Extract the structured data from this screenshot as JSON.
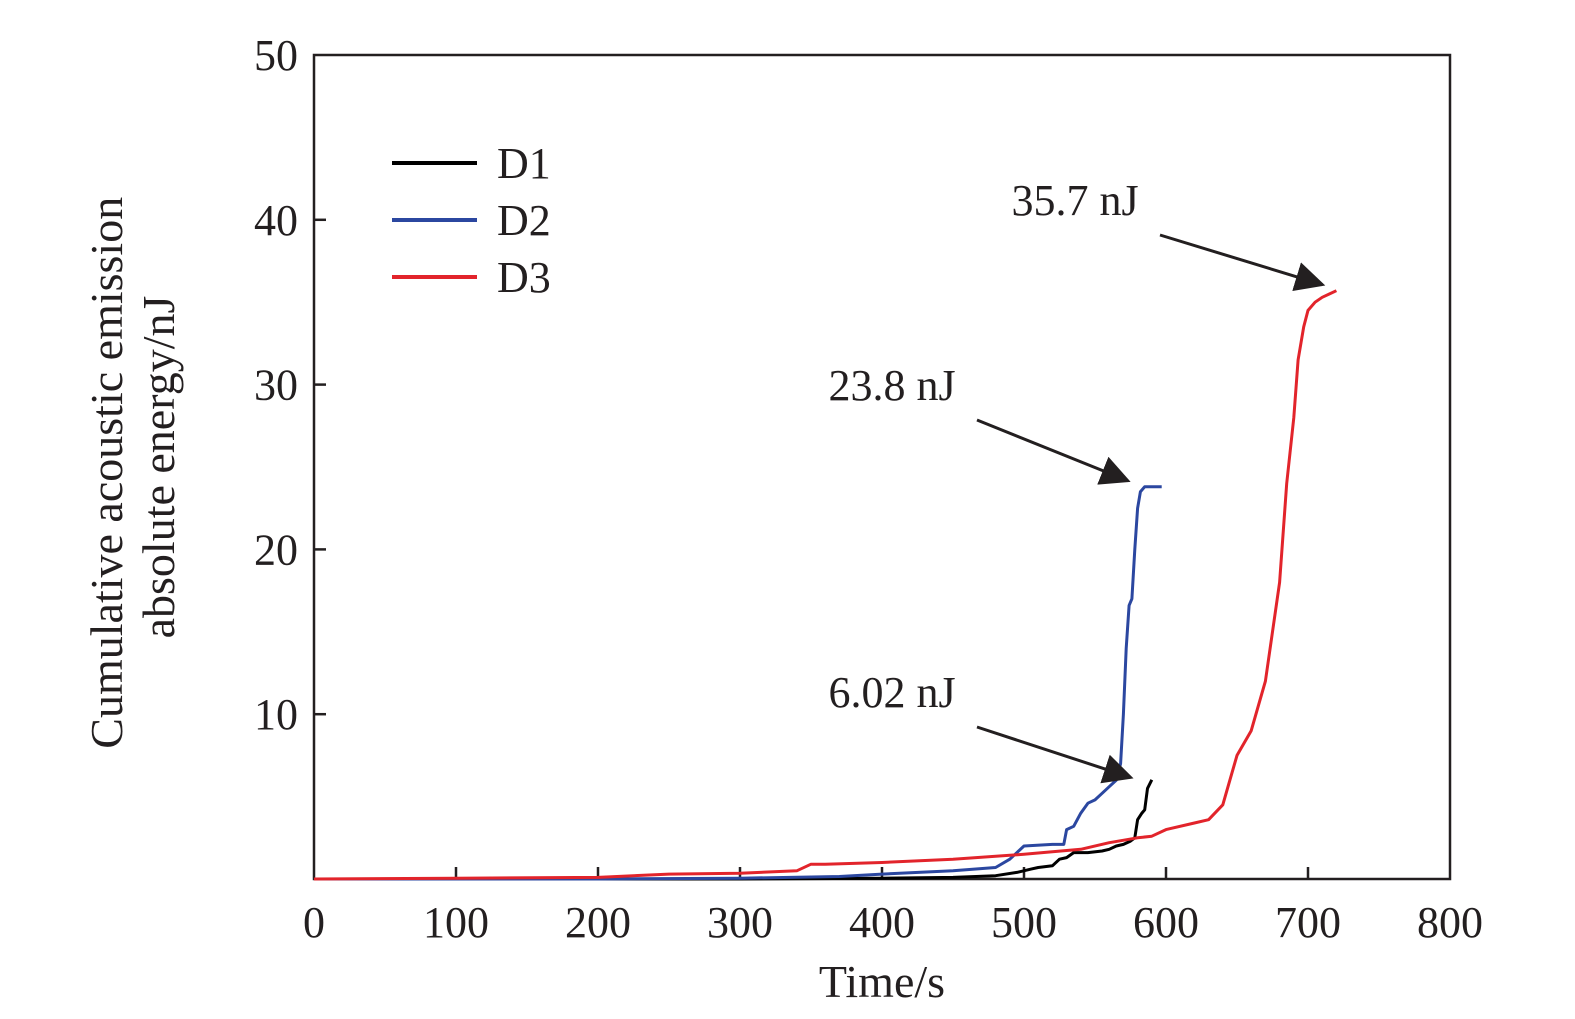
{
  "chart_data": {
    "type": "line",
    "title": "",
    "xlabel": "Time/s",
    "ylabel_lines": [
      "Cumulative acoustic emission",
      "absolute energy/nJ"
    ],
    "xlim": [
      0,
      800
    ],
    "ylim": [
      0,
      50
    ],
    "xticks": [
      0,
      100,
      200,
      300,
      400,
      500,
      600,
      700,
      800
    ],
    "yticks": [
      10,
      20,
      30,
      40,
      50
    ],
    "legend": {
      "placement": "top-left"
    },
    "grid": false,
    "series": [
      {
        "name": "D1",
        "color": "#000000",
        "points": [
          [
            0,
            0
          ],
          [
            100,
            0
          ],
          [
            200,
            0
          ],
          [
            300,
            0
          ],
          [
            400,
            0.05
          ],
          [
            450,
            0.1
          ],
          [
            480,
            0.2
          ],
          [
            495,
            0.4
          ],
          [
            505,
            0.6
          ],
          [
            510,
            0.7
          ],
          [
            520,
            0.8
          ],
          [
            525,
            1.2
          ],
          [
            530,
            1.3
          ],
          [
            535,
            1.6
          ],
          [
            545,
            1.6
          ],
          [
            555,
            1.7
          ],
          [
            560,
            1.8
          ],
          [
            565,
            2.0
          ],
          [
            570,
            2.1
          ],
          [
            575,
            2.3
          ],
          [
            578,
            2.5
          ],
          [
            580,
            3.6
          ],
          [
            583,
            4.0
          ],
          [
            585,
            4.2
          ],
          [
            587,
            5.5
          ],
          [
            590,
            6.02
          ]
        ]
      },
      {
        "name": "D2",
        "color": "#2b47a0",
        "points": [
          [
            0,
            0
          ],
          [
            100,
            0
          ],
          [
            200,
            0
          ],
          [
            300,
            0.05
          ],
          [
            370,
            0.15
          ],
          [
            400,
            0.3
          ],
          [
            450,
            0.5
          ],
          [
            480,
            0.7
          ],
          [
            490,
            1.2
          ],
          [
            500,
            2.0
          ],
          [
            520,
            2.1
          ],
          [
            528,
            2.1
          ],
          [
            530,
            3.0
          ],
          [
            535,
            3.2
          ],
          [
            540,
            4.0
          ],
          [
            545,
            4.6
          ],
          [
            550,
            4.8
          ],
          [
            555,
            5.2
          ],
          [
            560,
            5.6
          ],
          [
            565,
            6.0
          ],
          [
            568,
            7.0
          ],
          [
            570,
            10.0
          ],
          [
            572,
            14.0
          ],
          [
            574,
            16.6
          ],
          [
            576,
            17.0
          ],
          [
            578,
            20.0
          ],
          [
            580,
            22.5
          ],
          [
            582,
            23.5
          ],
          [
            585,
            23.8
          ],
          [
            590,
            23.8
          ],
          [
            597,
            23.8
          ]
        ]
      },
      {
        "name": "D3",
        "color": "#e2242b",
        "points": [
          [
            0,
            0
          ],
          [
            100,
            0.05
          ],
          [
            200,
            0.1
          ],
          [
            250,
            0.3
          ],
          [
            300,
            0.35
          ],
          [
            340,
            0.5
          ],
          [
            350,
            0.9
          ],
          [
            360,
            0.9
          ],
          [
            400,
            1.0
          ],
          [
            450,
            1.2
          ],
          [
            500,
            1.5
          ],
          [
            540,
            1.8
          ],
          [
            560,
            2.2
          ],
          [
            580,
            2.5
          ],
          [
            590,
            2.6
          ],
          [
            600,
            3.0
          ],
          [
            620,
            3.4
          ],
          [
            630,
            3.6
          ],
          [
            640,
            4.5
          ],
          [
            645,
            6.0
          ],
          [
            650,
            7.5
          ],
          [
            660,
            9.0
          ],
          [
            670,
            12.0
          ],
          [
            680,
            18.0
          ],
          [
            685,
            24.0
          ],
          [
            690,
            28.0
          ],
          [
            693,
            31.5
          ],
          [
            697,
            33.5
          ],
          [
            700,
            34.5
          ],
          [
            705,
            35.0
          ],
          [
            710,
            35.3
          ],
          [
            715,
            35.5
          ],
          [
            720,
            35.7
          ]
        ]
      }
    ],
    "annotations": [
      {
        "text": "35.7 nJ",
        "label_x": 1075,
        "label_y": 215,
        "target": [
          720,
          35.7
        ]
      },
      {
        "text": "23.8 nJ",
        "label_x": 892,
        "label_y": 400,
        "target": [
          583,
          23.8
        ]
      },
      {
        "text": "6.02 nJ",
        "label_x": 892,
        "label_y": 707,
        "target": [
          585,
          5.8
        ]
      }
    ]
  }
}
